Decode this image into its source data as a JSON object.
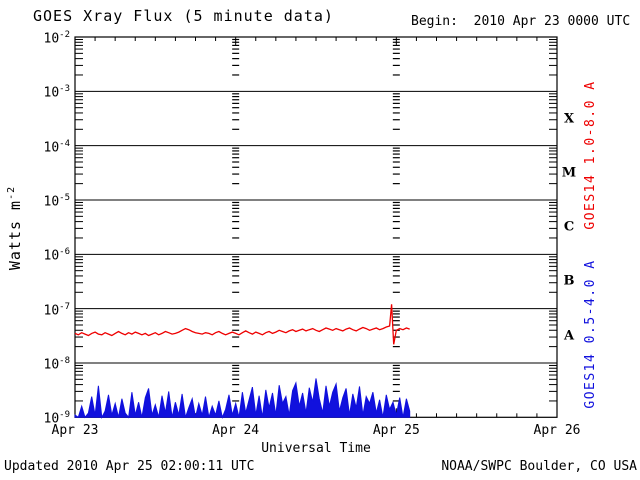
{
  "header": {
    "title": "GOES Xray Flux (5 minute data)",
    "begin_label": "Begin:  2010 Apr 23 0000 UTC"
  },
  "footer": {
    "updated": "Updated 2010 Apr 25 02:00:11 UTC",
    "source": "NOAA/SWPC Boulder, CO USA"
  },
  "colors": {
    "axis": "#000000",
    "background": "#ffffff",
    "long_band": "#ee0000",
    "short_band": "#1111dd"
  },
  "chart_data": {
    "type": "line",
    "title": "GOES Xray Flux (5 minute data)",
    "xlabel": "Universal Time",
    "ylabel": "Watts m-2",
    "grid": "log decades horizontal, dashed day columns vertical",
    "x_axis": {
      "label": "Universal Time",
      "range_hours": [
        0,
        72
      ],
      "minor_tick_hours": 3,
      "day_gridlines_hours": [
        24,
        48
      ],
      "ticks": [
        {
          "hours": 0,
          "label": "Apr 23"
        },
        {
          "hours": 24,
          "label": "Apr 24"
        },
        {
          "hours": 48,
          "label": "Apr 25"
        },
        {
          "hours": 72,
          "label": "Apr 26"
        }
      ]
    },
    "y_axis": {
      "label_base": "Watts m",
      "label_exp": "-2",
      "scale": "log",
      "range": [
        1e-09,
        0.01
      ],
      "tick_exponents": [
        -2,
        -3,
        -4,
        -5,
        -6,
        -7,
        -8,
        -9
      ]
    },
    "flare_classes": [
      {
        "label": "X",
        "flux": 0.000316
      },
      {
        "label": "M",
        "flux": 3.16e-05
      },
      {
        "label": "C",
        "flux": 3.16e-06
      },
      {
        "label": "B",
        "flux": 3.16e-07
      },
      {
        "label": "A",
        "flux": 3.16e-08
      }
    ],
    "series": [
      {
        "name": "GOES14 1.0-8.0 A",
        "color": "#ee0000",
        "points": [
          [
            0,
            3.5e-08
          ],
          [
            0.5,
            3.3e-08
          ],
          [
            1,
            3.6e-08
          ],
          [
            1.5,
            3.4e-08
          ],
          [
            2,
            3.2e-08
          ],
          [
            2.5,
            3.5e-08
          ],
          [
            3,
            3.7e-08
          ],
          [
            3.5,
            3.4e-08
          ],
          [
            4,
            3.3e-08
          ],
          [
            4.5,
            3.6e-08
          ],
          [
            5,
            3.4e-08
          ],
          [
            5.5,
            3.2e-08
          ],
          [
            6,
            3.5e-08
          ],
          [
            6.5,
            3.8e-08
          ],
          [
            7,
            3.5e-08
          ],
          [
            7.5,
            3.3e-08
          ],
          [
            8,
            3.6e-08
          ],
          [
            8.5,
            3.4e-08
          ],
          [
            9,
            3.7e-08
          ],
          [
            9.5,
            3.5e-08
          ],
          [
            10,
            3.3e-08
          ],
          [
            10.5,
            3.5e-08
          ],
          [
            11,
            3.2e-08
          ],
          [
            11.5,
            3.4e-08
          ],
          [
            12,
            3.6e-08
          ],
          [
            12.5,
            3.3e-08
          ],
          [
            13,
            3.5e-08
          ],
          [
            13.5,
            3.8e-08
          ],
          [
            14,
            3.6e-08
          ],
          [
            14.5,
            3.4e-08
          ],
          [
            15,
            3.5e-08
          ],
          [
            15.5,
            3.7e-08
          ],
          [
            16,
            4e-08
          ],
          [
            16.5,
            4.3e-08
          ],
          [
            17,
            4.1e-08
          ],
          [
            17.5,
            3.8e-08
          ],
          [
            18,
            3.6e-08
          ],
          [
            18.5,
            3.5e-08
          ],
          [
            19,
            3.4e-08
          ],
          [
            19.5,
            3.6e-08
          ],
          [
            20,
            3.5e-08
          ],
          [
            20.5,
            3.3e-08
          ],
          [
            21,
            3.6e-08
          ],
          [
            21.5,
            3.8e-08
          ],
          [
            22,
            3.5e-08
          ],
          [
            22.5,
            3.3e-08
          ],
          [
            23,
            3.5e-08
          ],
          [
            23.5,
            3.7e-08
          ],
          [
            24,
            3.5e-08
          ],
          [
            24.5,
            3.3e-08
          ],
          [
            25,
            3.6e-08
          ],
          [
            25.5,
            3.9e-08
          ],
          [
            26,
            3.6e-08
          ],
          [
            26.5,
            3.4e-08
          ],
          [
            27,
            3.7e-08
          ],
          [
            27.5,
            3.5e-08
          ],
          [
            28,
            3.3e-08
          ],
          [
            28.5,
            3.6e-08
          ],
          [
            29,
            3.8e-08
          ],
          [
            29.5,
            3.5e-08
          ],
          [
            30,
            3.7e-08
          ],
          [
            30.5,
            4e-08
          ],
          [
            31,
            3.8e-08
          ],
          [
            31.5,
            3.6e-08
          ],
          [
            32,
            3.9e-08
          ],
          [
            32.5,
            4.1e-08
          ],
          [
            33,
            3.8e-08
          ],
          [
            33.5,
            4e-08
          ],
          [
            34,
            4.2e-08
          ],
          [
            34.5,
            3.9e-08
          ],
          [
            35,
            4.1e-08
          ],
          [
            35.5,
            4.3e-08
          ],
          [
            36,
            4e-08
          ],
          [
            36.5,
            3.8e-08
          ],
          [
            37,
            4.1e-08
          ],
          [
            37.5,
            4.4e-08
          ],
          [
            38,
            4.2e-08
          ],
          [
            38.5,
            4e-08
          ],
          [
            39,
            4.3e-08
          ],
          [
            39.5,
            4.1e-08
          ],
          [
            40,
            3.9e-08
          ],
          [
            40.5,
            4.2e-08
          ],
          [
            41,
            4.4e-08
          ],
          [
            41.5,
            4.1e-08
          ],
          [
            42,
            3.9e-08
          ],
          [
            42.5,
            4.2e-08
          ],
          [
            43,
            4.5e-08
          ],
          [
            43.5,
            4.3e-08
          ],
          [
            44,
            4e-08
          ],
          [
            44.5,
            4.2e-08
          ],
          [
            45,
            4.4e-08
          ],
          [
            45.5,
            4.1e-08
          ],
          [
            46,
            4.3e-08
          ],
          [
            46.5,
            4.6e-08
          ],
          [
            47,
            4.8e-08
          ],
          [
            47.3,
            1.2e-07
          ],
          [
            47.6,
            2.2e-08
          ],
          [
            48,
            4e-08
          ],
          [
            48.5,
            4.3e-08
          ],
          [
            49,
            4.1e-08
          ],
          [
            49.5,
            4.4e-08
          ],
          [
            50,
            4.2e-08
          ]
        ]
      },
      {
        "name": "GOES14 0.5-4.0 A",
        "color": "#1111dd",
        "points": [
          [
            0,
            1.1e-09
          ],
          [
            0.5,
            1e-09
          ],
          [
            1,
            1.6e-09
          ],
          [
            1.5,
            1e-09
          ],
          [
            2,
            1.2e-09
          ],
          [
            2.5,
            2.4e-09
          ],
          [
            3,
            1.1e-09
          ],
          [
            3.5,
            3.8e-09
          ],
          [
            4,
            1e-09
          ],
          [
            4.5,
            1.3e-09
          ],
          [
            5,
            2.6e-09
          ],
          [
            5.5,
            1.1e-09
          ],
          [
            6,
            1.8e-09
          ],
          [
            6.5,
            1e-09
          ],
          [
            7,
            2.2e-09
          ],
          [
            7.5,
            1.2e-09
          ],
          [
            8,
            1e-09
          ],
          [
            8.5,
            2.9e-09
          ],
          [
            9,
            1.1e-09
          ],
          [
            9.5,
            1.9e-09
          ],
          [
            10,
            1e-09
          ],
          [
            10.5,
            2.3e-09
          ],
          [
            11,
            3.4e-09
          ],
          [
            11.5,
            1.1e-09
          ],
          [
            12,
            1.7e-09
          ],
          [
            12.5,
            1e-09
          ],
          [
            13,
            2.5e-09
          ],
          [
            13.5,
            1.2e-09
          ],
          [
            14,
            3e-09
          ],
          [
            14.5,
            1e-09
          ],
          [
            15,
            1.9e-09
          ],
          [
            15.5,
            1.1e-09
          ],
          [
            16,
            2.7e-09
          ],
          [
            16.5,
            1e-09
          ],
          [
            17,
            1.5e-09
          ],
          [
            17.5,
            2.2e-09
          ],
          [
            18,
            1e-09
          ],
          [
            18.5,
            1.8e-09
          ],
          [
            19,
            1.1e-09
          ],
          [
            19.5,
            2.4e-09
          ],
          [
            20,
            1e-09
          ],
          [
            20.5,
            1.6e-09
          ],
          [
            21,
            1.1e-09
          ],
          [
            21.5,
            2e-09
          ],
          [
            22,
            1e-09
          ],
          [
            22.5,
            1.4e-09
          ],
          [
            23,
            2.6e-09
          ],
          [
            23.5,
            1.1e-09
          ],
          [
            24,
            1.8e-09
          ],
          [
            24.5,
            1e-09
          ],
          [
            25,
            2.9e-09
          ],
          [
            25.5,
            1.2e-09
          ],
          [
            26,
            2.1e-09
          ],
          [
            26.5,
            3.6e-09
          ],
          [
            27,
            1.1e-09
          ],
          [
            27.5,
            2.5e-09
          ],
          [
            28,
            1e-09
          ],
          [
            28.5,
            3.2e-09
          ],
          [
            29,
            1.5e-09
          ],
          [
            29.5,
            2.8e-09
          ],
          [
            30,
            1.1e-09
          ],
          [
            30.5,
            3.9e-09
          ],
          [
            31,
            1.8e-09
          ],
          [
            31.5,
            2.4e-09
          ],
          [
            32,
            1.1e-09
          ],
          [
            32.5,
            3.1e-09
          ],
          [
            33,
            4.3e-09
          ],
          [
            33.5,
            1.6e-09
          ],
          [
            34,
            2.8e-09
          ],
          [
            34.5,
            1.2e-09
          ],
          [
            35,
            3.5e-09
          ],
          [
            35.5,
            1.9e-09
          ],
          [
            36,
            5.2e-09
          ],
          [
            36.5,
            2.2e-09
          ],
          [
            37,
            1.2e-09
          ],
          [
            37.5,
            3.8e-09
          ],
          [
            38,
            1.6e-09
          ],
          [
            38.5,
            2.9e-09
          ],
          [
            39,
            4.1e-09
          ],
          [
            39.5,
            1.3e-09
          ],
          [
            40,
            2.3e-09
          ],
          [
            40.5,
            3.4e-09
          ],
          [
            41,
            1.1e-09
          ],
          [
            41.5,
            2.7e-09
          ],
          [
            42,
            1.5e-09
          ],
          [
            42.5,
            3.7e-09
          ],
          [
            43,
            1.1e-09
          ],
          [
            43.5,
            2.4e-09
          ],
          [
            44,
            1.8e-09
          ],
          [
            44.5,
            2.9e-09
          ],
          [
            45,
            1.2e-09
          ],
          [
            45.5,
            2.1e-09
          ],
          [
            46,
            1e-09
          ],
          [
            46.5,
            2.6e-09
          ],
          [
            47,
            1.4e-09
          ],
          [
            47.5,
            1.9e-09
          ],
          [
            48,
            1.1e-09
          ],
          [
            48.5,
            2.3e-09
          ],
          [
            49,
            1e-09
          ],
          [
            49.5,
            2.2e-09
          ],
          [
            50,
            1.3e-09
          ]
        ]
      }
    ]
  }
}
